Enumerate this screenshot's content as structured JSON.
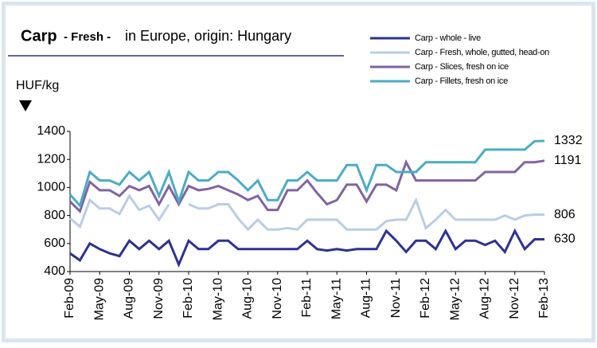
{
  "chart_data": {
    "type": "line",
    "title": [
      "Carp",
      "- Fresh -",
      "in Europe, origin: Hungary"
    ],
    "y_label": "HUF/kg",
    "categories": [
      "Feb-09",
      null,
      null,
      "May-09",
      null,
      null,
      "Aug-09",
      null,
      null,
      "Nov-09",
      null,
      null,
      "Feb-10",
      null,
      null,
      "May-10",
      null,
      null,
      "Aug-10",
      null,
      null,
      "Nov-10",
      null,
      null,
      "Feb-11",
      null,
      null,
      "May-11",
      null,
      null,
      "Aug-11",
      null,
      null,
      "Nov-11",
      null,
      null,
      "Feb-12",
      null,
      null,
      "May-12",
      null,
      null,
      "Aug-12",
      null,
      null,
      "Nov-12",
      null,
      null,
      "Feb-13"
    ],
    "series": [
      {
        "name": "Carp - whole - live",
        "color": "#2e3192",
        "values": [
          530,
          480,
          600,
          560,
          530,
          510,
          620,
          560,
          620,
          560,
          620,
          450,
          620,
          560,
          560,
          620,
          620,
          560,
          560,
          560,
          560,
          560,
          560,
          560,
          620,
          560,
          550,
          560,
          550,
          560,
          560,
          560,
          690,
          620,
          540,
          620,
          620,
          560,
          690,
          560,
          620,
          620,
          590,
          620,
          540,
          690,
          560,
          630,
          630
        ]
      },
      {
        "name": "Carp - Fresh, whole, gutted, head-on",
        "color": "#b9cde5",
        "values": [
          780,
          720,
          910,
          850,
          850,
          810,
          940,
          840,
          870,
          770,
          880,
          null,
          880,
          850,
          850,
          880,
          880,
          780,
          700,
          770,
          700,
          700,
          710,
          700,
          770,
          770,
          770,
          770,
          700,
          700,
          700,
          700,
          760,
          770,
          770,
          910,
          710,
          770,
          840,
          770,
          770,
          770,
          770,
          770,
          800,
          770,
          800,
          806,
          806
        ]
      },
      {
        "name": "Carp - Slices, fresh on ice",
        "color": "#8064a2",
        "values": [
          900,
          830,
          1040,
          980,
          980,
          940,
          1010,
          980,
          1010,
          880,
          1010,
          880,
          1010,
          980,
          990,
          1010,
          980,
          950,
          910,
          940,
          840,
          840,
          980,
          980,
          1050,
          960,
          880,
          910,
          1020,
          1020,
          900,
          1020,
          1020,
          980,
          1180,
          1050,
          1050,
          1050,
          1050,
          1050,
          1050,
          1050,
          1110,
          1110,
          1110,
          1110,
          1180,
          1180,
          1191
        ]
      },
      {
        "name": "Carp - Fillets, fresh on ice",
        "color": "#4bacc6",
        "values": [
          950,
          870,
          1110,
          1050,
          1050,
          1020,
          1110,
          1050,
          1110,
          940,
          1110,
          900,
          1110,
          1050,
          1050,
          1110,
          1110,
          1050,
          980,
          1050,
          910,
          910,
          1050,
          1050,
          1110,
          1050,
          1050,
          1050,
          1160,
          1160,
          980,
          1160,
          1160,
          1110,
          1110,
          1110,
          1180,
          1180,
          1180,
          1180,
          1180,
          1180,
          1270,
          1270,
          1270,
          1270,
          1270,
          1330,
          1332
        ]
      }
    ],
    "ylim": [
      400,
      1400
    ],
    "yticks": [
      400,
      600,
      800,
      1000,
      1200,
      1400
    ],
    "grid": false
  }
}
